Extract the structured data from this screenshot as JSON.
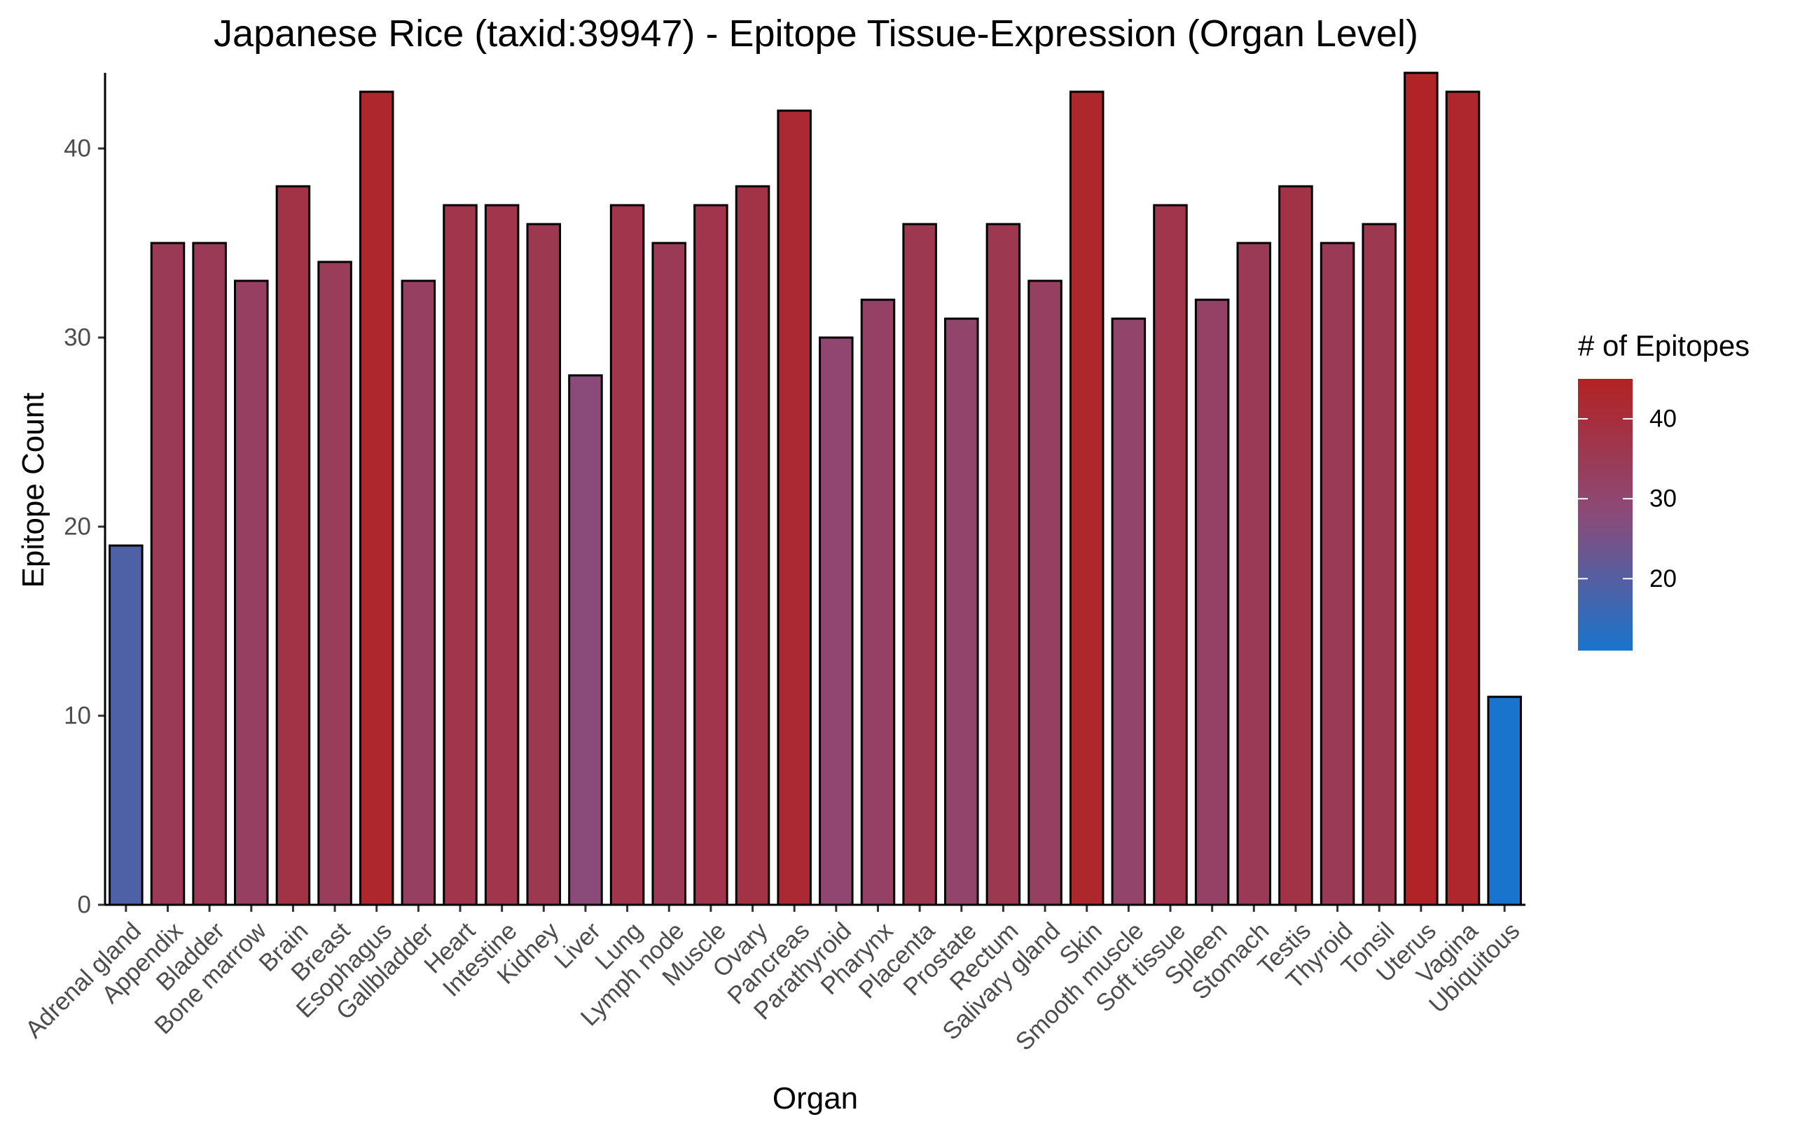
{
  "chart_data": {
    "type": "bar",
    "title": "Japanese Rice (taxid:39947) - Epitope Tissue-Expression (Organ Level)",
    "xlabel": "Organ",
    "ylabel": "Epitope Count",
    "ylim": [
      0,
      44
    ],
    "yticks": [
      0,
      10,
      20,
      30,
      40
    ],
    "grid": false,
    "categories": [
      "Adrenal gland",
      "Appendix",
      "Bladder",
      "Bone marrow",
      "Brain",
      "Breast",
      "Esophagus",
      "Gallbladder",
      "Heart",
      "Intestine",
      "Kidney",
      "Liver",
      "Lung",
      "Lymph node",
      "Muscle",
      "Ovary",
      "Pancreas",
      "Parathyroid",
      "Pharynx",
      "Placenta",
      "Prostate",
      "Rectum",
      "Salivary gland",
      "Skin",
      "Smooth muscle",
      "Soft tissue",
      "Spleen",
      "Stomach",
      "Testis",
      "Thyroid",
      "Tonsil",
      "Uterus",
      "Vagina",
      "Ubiquitous"
    ],
    "values": [
      19,
      35,
      35,
      33,
      38,
      34,
      43,
      33,
      37,
      37,
      36,
      28,
      37,
      35,
      37,
      38,
      42,
      30,
      32,
      36,
      31,
      36,
      33,
      43,
      31,
      37,
      32,
      35,
      38,
      35,
      36,
      44,
      43,
      11
    ],
    "legend": {
      "title": "# of Epitopes",
      "position": "right",
      "ticks": [
        20,
        30,
        40
      ],
      "range": [
        11,
        45
      ],
      "low_color": "#1874CD",
      "mid_color": "#8B4B7A",
      "high_color": "#B22222"
    },
    "bar_outline_color": "#000000"
  }
}
